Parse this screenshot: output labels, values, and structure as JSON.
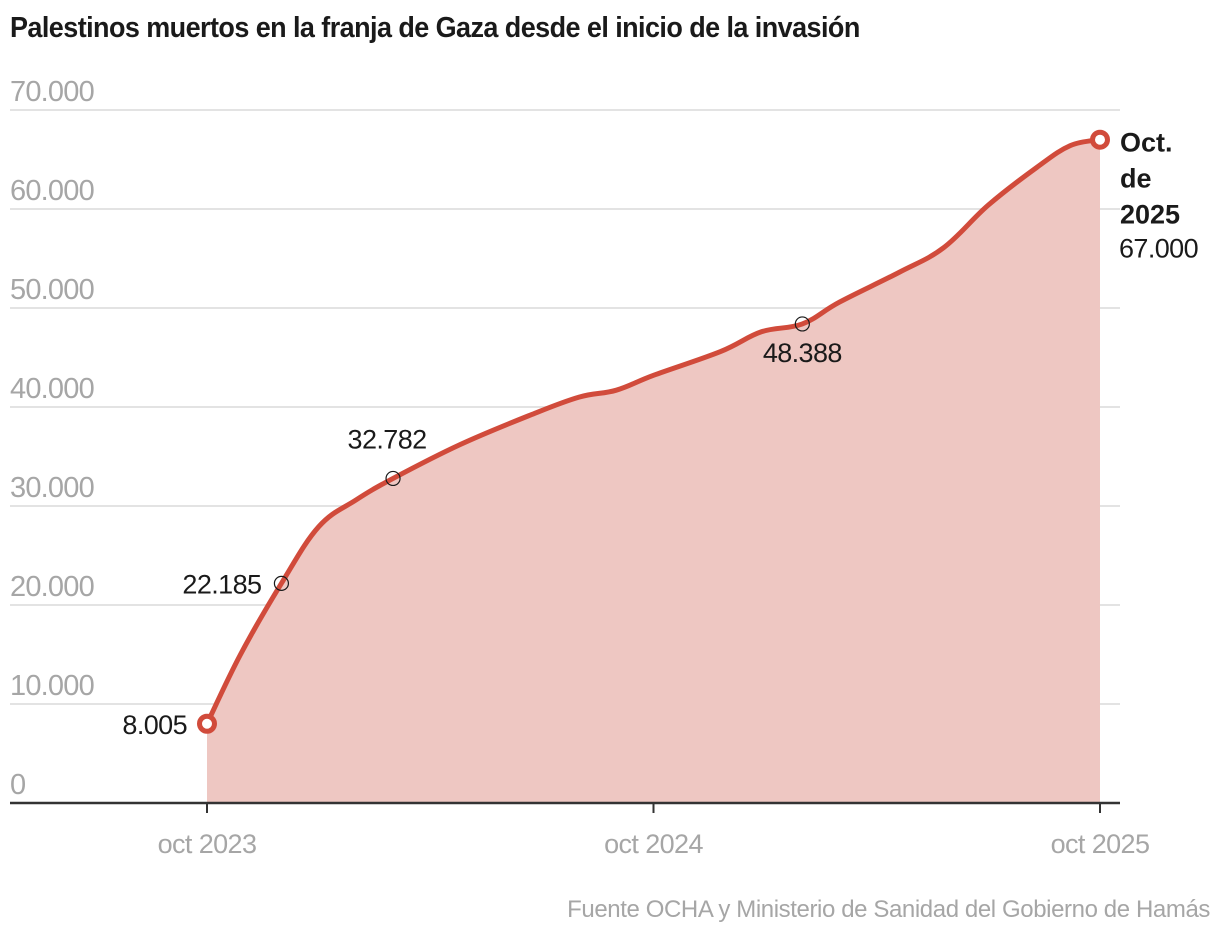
{
  "header": {
    "title": "Palestinos muertos en la franja de Gaza desde el inicio de la invasión"
  },
  "footer": {
    "source": "Fuente OCHA y Ministerio de Sanidad del Gobierno de Hamás"
  },
  "colors": {
    "line": "#d14b3b",
    "area": "#eec7c2",
    "grid": "#e3e3e3",
    "axis": "#333333",
    "tick_label": "#a6a6a6",
    "text": "#1a1a1a",
    "marker_ring": "#1a1a1a"
  },
  "chart_data": {
    "type": "area",
    "title": "Palestinos muertos en la franja de Gaza desde el inicio de la invasión",
    "xlabel": "",
    "ylabel": "",
    "x_unit": "months since oct 2023",
    "xlim": [
      0,
      24
    ],
    "ylim": [
      0,
      70000
    ],
    "grid": true,
    "legend": "none",
    "y_ticks": [
      {
        "value": 0,
        "label": "0"
      },
      {
        "value": 10000,
        "label": "10.000"
      },
      {
        "value": 20000,
        "label": "20.000"
      },
      {
        "value": 30000,
        "label": "30.000"
      },
      {
        "value": 40000,
        "label": "40.000"
      },
      {
        "value": 50000,
        "label": "50.000"
      },
      {
        "value": 60000,
        "label": "60.000"
      },
      {
        "value": 70000,
        "label": "70.000"
      }
    ],
    "x_ticks": [
      {
        "value": 0,
        "label": "oct 2023"
      },
      {
        "value": 12,
        "label": "oct 2024"
      },
      {
        "value": 24,
        "label": "oct 2025"
      }
    ],
    "series": [
      {
        "name": "Palestinos muertos",
        "points": [
          [
            0,
            8005
          ],
          [
            0.9,
            15000
          ],
          [
            2,
            22185
          ],
          [
            3,
            27900
          ],
          [
            4,
            30600
          ],
          [
            5,
            32782
          ],
          [
            6.8,
            36200
          ],
          [
            8.7,
            39200
          ],
          [
            10,
            41000
          ],
          [
            11,
            41700
          ],
          [
            12,
            43200
          ],
          [
            13.8,
            45600
          ],
          [
            14.9,
            47600
          ],
          [
            16,
            48388
          ],
          [
            17,
            50600
          ],
          [
            18.6,
            53600
          ],
          [
            19.8,
            56100
          ],
          [
            21,
            60400
          ],
          [
            22.3,
            64200
          ],
          [
            23.2,
            66400
          ],
          [
            24,
            67000
          ]
        ]
      }
    ],
    "annotations": [
      {
        "x": 0,
        "y": 8005,
        "label": "8.005",
        "marker": "endpoint",
        "position": "left"
      },
      {
        "x": 2,
        "y": 22185,
        "label": "22.185",
        "marker": "ring",
        "position": "left"
      },
      {
        "x": 5,
        "y": 32782,
        "label": "32.782",
        "marker": "ring",
        "position": "top"
      },
      {
        "x": 16,
        "y": 48388,
        "label": "48.388",
        "marker": "ring",
        "position": "bottom"
      },
      {
        "x": 24,
        "y": 67000,
        "label": "67.000",
        "marker": "endpoint",
        "position": "right",
        "title_lines": [
          "Oct.",
          "de",
          "2025"
        ]
      }
    ]
  }
}
